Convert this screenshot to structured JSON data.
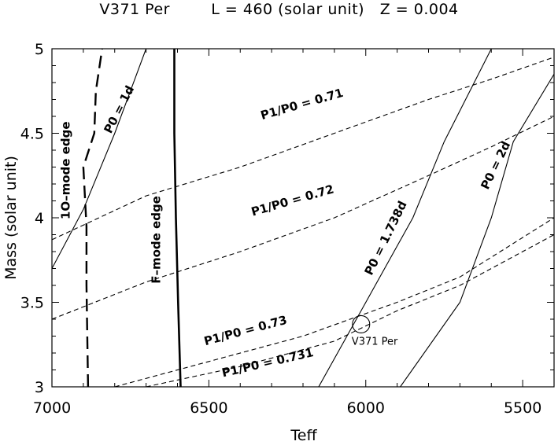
{
  "chart_data": {
    "type": "line",
    "title": "V371 Per        L = 460 (solar unit)   Z = 0.004",
    "xlabel": "Teff",
    "ylabel": "Mass (solar unit)",
    "xlim": [
      7000,
      5400
    ],
    "ylim": [
      3,
      5
    ],
    "x_reversed": true,
    "xticks": [
      7000,
      6500,
      6000,
      5500
    ],
    "xtick_labels": [
      "7000",
      "6500",
      "6000",
      "5500"
    ],
    "yticks": [
      3,
      3.5,
      4,
      4.5,
      5
    ],
    "ytick_labels": [
      "3",
      "3.5",
      "4",
      "4.5",
      "5"
    ],
    "series": [
      {
        "name": "1O-mode edge",
        "style": "long-dash-thick",
        "label": "1O–mode edge",
        "points": [
          [
            6885,
            3
          ],
          [
            6890,
            3.6
          ],
          [
            6890,
            3.95
          ],
          [
            6900,
            4.3
          ],
          [
            6865,
            4.5
          ],
          [
            6860,
            4.75
          ],
          [
            6840,
            5
          ]
        ],
        "label_pos": [
          6943,
          4.28
        ],
        "label_rot": -90
      },
      {
        "name": "F-mode edge",
        "style": "solid-thick",
        "label": "F–mode edge",
        "points": [
          [
            6590,
            3
          ],
          [
            6598,
            3.5
          ],
          [
            6605,
            4
          ],
          [
            6610,
            4.5
          ],
          [
            6610,
            5
          ]
        ],
        "label_pos": [
          6655,
          3.87
        ],
        "label_rot": -90
      },
      {
        "name": "P0 = 1d",
        "style": "solid",
        "label": "P0 = 1d",
        "points": [
          [
            7000,
            3.7
          ],
          [
            6900,
            4.05
          ],
          [
            6800,
            4.5
          ],
          [
            6700,
            5
          ]
        ],
        "label_pos": [
          6775,
          4.63
        ],
        "label_rot": -63
      },
      {
        "name": "P0 = 1.738d",
        "style": "solid",
        "label": "P0 = 1.738d",
        "points": [
          [
            6150,
            3
          ],
          [
            6000,
            3.5
          ],
          [
            5850,
            4
          ],
          [
            5750,
            4.45
          ],
          [
            5600,
            5
          ]
        ],
        "label_pos": [
          5925,
          3.87
        ],
        "label_rot": -64
      },
      {
        "name": "P0 = 2d",
        "style": "solid",
        "label": "P0 = 2d",
        "points": [
          [
            5890,
            3
          ],
          [
            5700,
            3.5
          ],
          [
            5600,
            4
          ],
          [
            5530,
            4.45
          ],
          [
            5400,
            4.85
          ]
        ],
        "label_pos": [
          5575,
          4.3
        ],
        "label_rot": -64
      },
      {
        "name": "P1/P0 = 0.71",
        "style": "dashed",
        "label": "P1/P0 = 0.71",
        "points": [
          [
            7000,
            3.87
          ],
          [
            6700,
            4.13
          ],
          [
            6400,
            4.3
          ],
          [
            6100,
            4.5
          ],
          [
            5800,
            4.7
          ],
          [
            5600,
            4.82
          ],
          [
            5400,
            4.95
          ]
        ],
        "label_pos": [
          6200,
          4.65
        ],
        "label_rot": -16
      },
      {
        "name": "P1/P0 = 0.72",
        "style": "dashed",
        "label": "P1/P0 = 0.72",
        "points": [
          [
            7000,
            3.4
          ],
          [
            6700,
            3.62
          ],
          [
            6400,
            3.8
          ],
          [
            6100,
            4.0
          ],
          [
            5800,
            4.25
          ],
          [
            5600,
            4.42
          ],
          [
            5400,
            4.6
          ]
        ],
        "label_pos": [
          6230,
          4.08
        ],
        "label_rot": -16
      },
      {
        "name": "P1/P0 = 0.73",
        "style": "dashed",
        "label": "P1/P0 = 0.73",
        "points": [
          [
            6800,
            3.0
          ],
          [
            6500,
            3.15
          ],
          [
            6200,
            3.3
          ],
          [
            5900,
            3.5
          ],
          [
            5700,
            3.65
          ],
          [
            5400,
            4.0
          ]
        ],
        "label_pos": [
          6380,
          3.31
        ],
        "label_rot": -15
      },
      {
        "name": "P1/P0 = 0.731",
        "style": "dashed",
        "label": "P1/P0 = 0.731",
        "points": [
          [
            6700,
            3.0
          ],
          [
            6400,
            3.12
          ],
          [
            6100,
            3.27
          ],
          [
            5900,
            3.45
          ],
          [
            5700,
            3.6
          ],
          [
            5400,
            3.9
          ]
        ],
        "label_pos": [
          6310,
          3.12
        ],
        "label_rot": -13
      }
    ],
    "marker": {
      "name": "V371 Per",
      "teff": 6015,
      "mass": 3.37,
      "label": "V371 Per",
      "label_pos": [
        6045,
        3.25
      ]
    }
  }
}
